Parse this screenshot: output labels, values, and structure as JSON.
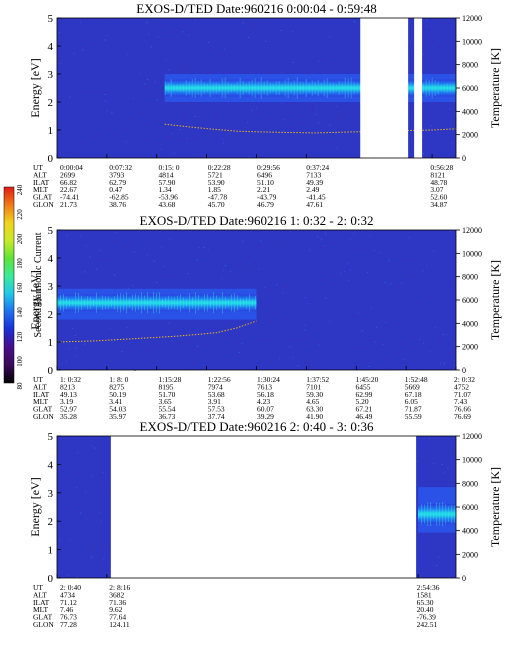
{
  "colorbar": {
    "label": "Second Harmonic Current",
    "ticks": [
      "80",
      "100",
      "120",
      "140",
      "160",
      "180",
      "200",
      "220",
      "240"
    ],
    "colors": [
      "#000000",
      "#3b0a5a",
      "#4a0f8a",
      "#1a2fd6",
      "#1f6ff0",
      "#20c8e8",
      "#3dea9a",
      "#5fe33a",
      "#c8ea2a",
      "#f2d21e",
      "#f07a18",
      "#e11b18"
    ]
  },
  "chart_data": [
    {
      "type": "heatmap",
      "title": "EXOS-D/TED   Date:960216  0:00:04 - 0:59:48",
      "ylabel": "Energy [eV]",
      "y2label": "Temperature [K]",
      "ylim": [
        0,
        5
      ],
      "y2lim": [
        0,
        12000
      ],
      "yticks": [
        "0",
        "1",
        "2",
        "3",
        "4",
        "5"
      ],
      "y2ticks": [
        "0",
        "2000",
        "4000",
        "6000",
        "8000",
        "10000",
        "12000"
      ],
      "x_ticks": [
        "0:00:04",
        "0:07:32",
        "0:15: 0",
        "0:22:28",
        "0:29:56",
        "0:37:24",
        "0:56:28"
      ],
      "x_fraction": [
        0.0,
        0.125,
        0.25,
        0.375,
        0.5,
        0.625,
        0.94
      ],
      "data_gaps": [
        [
          0.76,
          0.88
        ],
        [
          0.895,
          0.915
        ]
      ],
      "band": {
        "x_start": 0.27,
        "x_end": 1.0,
        "e_low": 2.0,
        "e_high": 3.0,
        "core_low": 2.2,
        "core_high": 2.8
      },
      "temperature": {
        "x": [
          0.27,
          0.35,
          0.45,
          0.55,
          0.65,
          0.75,
          0.94,
          1.0
        ],
        "k": [
          2900,
          2600,
          2300,
          2200,
          2150,
          2250,
          2400,
          2500
        ]
      },
      "orbit_rows": [
        {
          "label": "UT",
          "values": [
            "0:00:04",
            "0:07:32",
            "0:15: 0",
            "0:22:28",
            "0:29:56",
            "0:37:24",
            "0:56:28"
          ]
        },
        {
          "label": "ALT",
          "values": [
            "2699",
            "3793",
            "4814",
            "5721",
            "6496",
            "7133",
            "8121"
          ]
        },
        {
          "label": "ILAT",
          "values": [
            "66.82",
            "62.79",
            "57.90",
            "53.90",
            "51.10",
            "49.39",
            "48.78"
          ]
        },
        {
          "label": "MLT",
          "values": [
            "22.67",
            "0.47",
            "1.34",
            "1.85",
            "2.21",
            "2.49",
            "3.07"
          ]
        },
        {
          "label": "GLAT",
          "values": [
            "-74.41",
            "-62.85",
            "-53.96",
            "-47.78",
            "-43.79",
            "-41.45",
            "52.60"
          ]
        },
        {
          "label": "GLON",
          "values": [
            "21.73",
            "38.76",
            "43.68",
            "45.70",
            "46.79",
            "47.61",
            "34.87"
          ]
        }
      ]
    },
    {
      "type": "heatmap",
      "title": "EXOS-D/TED   Date:960216  1: 0:32 - 2: 0:32",
      "ylabel": "Energy [eV]",
      "y2label": "Temperature [K]",
      "ylim": [
        0,
        5
      ],
      "y2lim": [
        0,
        12000
      ],
      "yticks": [
        "0",
        "1",
        "2",
        "3",
        "4",
        "5"
      ],
      "y2ticks": [
        "0",
        "2000",
        "4000",
        "6000",
        "8000",
        "10000",
        "12000"
      ],
      "x_ticks": [
        "1: 0:32",
        "1: 8: 0",
        "1:15:28",
        "1:22:56",
        "1:30:24",
        "1:37:52",
        "1:45:20",
        "1:52:48",
        "2: 0:32"
      ],
      "x_fraction": [
        0.0,
        0.125,
        0.25,
        0.375,
        0.5,
        0.625,
        0.75,
        0.875,
        1.0
      ],
      "data_gaps": [],
      "band": {
        "x_start": 0.0,
        "x_end": 0.5,
        "e_low": 1.8,
        "e_high": 2.9,
        "core_low": 2.1,
        "core_high": 2.7
      },
      "temperature": {
        "x": [
          0.0,
          0.1,
          0.2,
          0.3,
          0.4,
          0.45,
          0.5
        ],
        "k": [
          2400,
          2500,
          2700,
          2900,
          3200,
          3600,
          4200
        ]
      },
      "orbit_rows": [
        {
          "label": "UT",
          "values": [
            "1: 0:32",
            "1: 8: 0",
            "1:15:28",
            "1:22:56",
            "1:30:24",
            "1:37:52",
            "1:45:20",
            "1:52:48",
            "2: 0:32"
          ]
        },
        {
          "label": "ALT",
          "values": [
            "8213",
            "8275",
            "8195",
            "7974",
            "7613",
            "7101",
            "6455",
            "5669",
            "4752"
          ]
        },
        {
          "label": "ILAT",
          "values": [
            "49.13",
            "50.19",
            "51.70",
            "53.68",
            "56.18",
            "59.30",
            "62.99",
            "67.18",
            "71.07"
          ]
        },
        {
          "label": "MLT",
          "values": [
            "3.19",
            "3.41",
            "3.65",
            "3.91",
            "4.23",
            "4.65",
            "5.20",
            "6.05",
            "7.43"
          ]
        },
        {
          "label": "GLAT",
          "values": [
            "52.97",
            "54.03",
            "55.54",
            "57.53",
            "60.07",
            "63.30",
            "67.21",
            "71.87",
            "76.66"
          ]
        },
        {
          "label": "GLON",
          "values": [
            "35.28",
            "35.97",
            "36.73",
            "37.74",
            "39.29",
            "41.90",
            "46.49",
            "55.59",
            "76.69"
          ]
        }
      ]
    },
    {
      "type": "heatmap",
      "title": "EXOS-D/TED   Date:960216  2: 0:40 - 3: 0:36",
      "ylabel": "Energy [eV]",
      "y2label": "Temperature [K]",
      "ylim": [
        0,
        5
      ],
      "y2lim": [
        0,
        12000
      ],
      "yticks": [
        "0",
        "1",
        "2",
        "3",
        "4",
        "5"
      ],
      "y2ticks": [
        "0",
        "2000",
        "4000",
        "6000",
        "8000",
        "10000",
        "12000"
      ],
      "x_ticks": [
        "2: 0:40",
        "2: 8:16",
        "2:54:36"
      ],
      "x_fraction": [
        0.0,
        0.125,
        0.905
      ],
      "data_gaps": [
        [
          0.135,
          0.9
        ]
      ],
      "band": {
        "x_start": 0.905,
        "x_end": 1.0,
        "e_low": 1.6,
        "e_high": 3.2,
        "core_low": 1.9,
        "core_high": 2.6
      },
      "temperature": {
        "x": [],
        "k": []
      },
      "orbit_rows": [
        {
          "label": "UT",
          "values": [
            "2: 0:40",
            "2: 8:16",
            "2:54:36"
          ]
        },
        {
          "label": "ALT",
          "values": [
            "4734",
            "3682",
            "1581"
          ]
        },
        {
          "label": "ILAT",
          "values": [
            "71.12",
            "71.36",
            "65.30"
          ]
        },
        {
          "label": "MLT",
          "values": [
            "7.46",
            "9.62",
            "20.40"
          ]
        },
        {
          "label": "GLAT",
          "values": [
            "76.73",
            "77.64",
            "-76.39"
          ]
        },
        {
          "label": "GLON",
          "values": [
            "77.28",
            "124.11",
            "242.51"
          ]
        }
      ]
    }
  ]
}
